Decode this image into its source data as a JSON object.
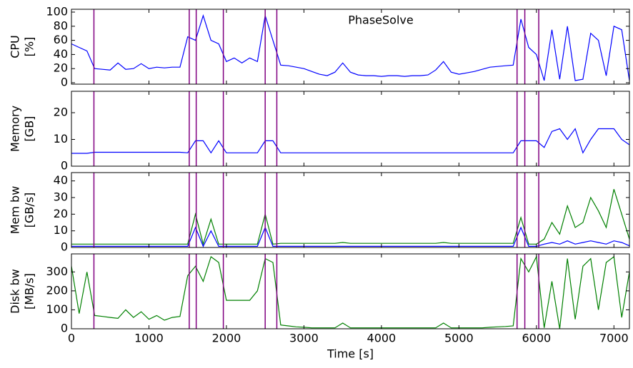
{
  "chart_data": [
    {
      "type": "line",
      "ylabel": [
        "CPU",
        "[%]"
      ],
      "annotation": "PhaseSolve",
      "x": [
        0,
        100,
        200,
        300,
        400,
        500,
        600,
        700,
        800,
        900,
        1000,
        1100,
        1200,
        1300,
        1400,
        1500,
        1600,
        1700,
        1800,
        1900,
        2000,
        2100,
        2200,
        2300,
        2400,
        2500,
        2600,
        2700,
        2800,
        2900,
        3000,
        3100,
        3200,
        3300,
        3400,
        3500,
        3600,
        3700,
        3800,
        3900,
        4000,
        4100,
        4200,
        4300,
        4400,
        4500,
        4600,
        4700,
        4800,
        4900,
        5000,
        5100,
        5200,
        5300,
        5400,
        5500,
        5600,
        5700,
        5800,
        5900,
        6000,
        6100,
        6200,
        6300,
        6400,
        6500,
        6600,
        6700,
        6800,
        6900,
        7000,
        7100,
        7200
      ],
      "series": [
        {
          "color": "#0000ff",
          "values": [
            55,
            50,
            45,
            20,
            19,
            18,
            28,
            19,
            20,
            27,
            20,
            22,
            21,
            22,
            22,
            65,
            60,
            95,
            60,
            55,
            30,
            35,
            28,
            35,
            30,
            95,
            60,
            25,
            24,
            22,
            20,
            16,
            12,
            10,
            15,
            28,
            15,
            11,
            10,
            10,
            9,
            10,
            10,
            9,
            10,
            10,
            11,
            18,
            30,
            15,
            12,
            14,
            16,
            19,
            22,
            23,
            24,
            25,
            90,
            50,
            40,
            3,
            75,
            5,
            80,
            3,
            5,
            70,
            60,
            10,
            80,
            75,
            3
          ]
        }
      ],
      "xlim": [
        0,
        7200
      ],
      "xticks": [
        0,
        1000,
        2000,
        3000,
        4000,
        5000,
        6000,
        7000
      ],
      "ylim": [
        -2,
        104
      ],
      "yticks": [
        0,
        20,
        40,
        60,
        80,
        100
      ],
      "vlines": [
        290,
        1520,
        1610,
        1960,
        2500,
        2650,
        5750,
        5850,
        6030
      ],
      "vline_color": "#800080"
    },
    {
      "type": "line",
      "ylabel": [
        "Memory",
        "[GB]"
      ],
      "x": [
        0,
        100,
        200,
        300,
        400,
        500,
        600,
        700,
        800,
        900,
        1000,
        1100,
        1200,
        1300,
        1400,
        1500,
        1600,
        1700,
        1800,
        1900,
        2000,
        2100,
        2200,
        2300,
        2400,
        2500,
        2600,
        2700,
        2800,
        2900,
        3000,
        3100,
        3200,
        3300,
        3400,
        3500,
        3600,
        3700,
        3800,
        3900,
        4000,
        4100,
        4200,
        4300,
        4400,
        4500,
        4600,
        4700,
        4800,
        4900,
        5000,
        5100,
        5200,
        5300,
        5400,
        5500,
        5600,
        5700,
        5800,
        5900,
        6000,
        6100,
        6200,
        6300,
        6400,
        6500,
        6600,
        6700,
        6800,
        6900,
        7000,
        7100,
        7200
      ],
      "series": [
        {
          "color": "#0000ff",
          "values": [
            4.8,
            4.8,
            4.8,
            5.2,
            5.2,
            5.2,
            5.2,
            5.2,
            5.2,
            5.2,
            5.2,
            5.2,
            5.2,
            5.2,
            5.2,
            5,
            9.5,
            9.5,
            5,
            9.5,
            5,
            5,
            5,
            5,
            5,
            9.5,
            9.5,
            5,
            5,
            5,
            5,
            5,
            5,
            5,
            5,
            5,
            5,
            5,
            5,
            5,
            5,
            5,
            5,
            5,
            5,
            5,
            5,
            5,
            5,
            5,
            5,
            5,
            5,
            5,
            5,
            5,
            5,
            5,
            9.5,
            9.5,
            9.5,
            7,
            13,
            14,
            10,
            14,
            5,
            10,
            14,
            14,
            14,
            10,
            8
          ]
        }
      ],
      "xlim": [
        0,
        7200
      ],
      "xticks": [
        0,
        1000,
        2000,
        3000,
        4000,
        5000,
        6000,
        7000
      ],
      "ylim": [
        0,
        28
      ],
      "yticks": [
        0,
        10,
        20
      ],
      "vlines": [
        290,
        1520,
        1610,
        1960,
        2500,
        2650,
        5750,
        5850,
        6030
      ],
      "vline_color": "#800080"
    },
    {
      "type": "line",
      "ylabel": [
        "Mem bw",
        "[GB/s]"
      ],
      "x": [
        0,
        100,
        200,
        300,
        400,
        500,
        600,
        700,
        800,
        900,
        1000,
        1100,
        1200,
        1300,
        1400,
        1500,
        1600,
        1700,
        1800,
        1900,
        2000,
        2100,
        2200,
        2300,
        2400,
        2500,
        2600,
        2700,
        2800,
        2900,
        3000,
        3100,
        3200,
        3300,
        3400,
        3500,
        3600,
        3700,
        3800,
        3900,
        4000,
        4100,
        4200,
        4300,
        4400,
        4500,
        4600,
        4700,
        4800,
        4900,
        5000,
        5100,
        5200,
        5300,
        5400,
        5500,
        5600,
        5700,
        5800,
        5900,
        6000,
        6100,
        6200,
        6300,
        6400,
        6500,
        6600,
        6700,
        6800,
        6900,
        7000,
        7100,
        7200
      ],
      "series": [
        {
          "color": "#008000",
          "values": [
            2,
            2,
            2,
            2,
            2,
            2,
            2,
            2,
            2,
            2,
            2,
            2,
            2,
            2,
            2,
            2,
            20,
            2,
            17,
            2,
            2,
            2,
            2,
            2,
            2,
            20,
            2,
            2.5,
            2.5,
            2.5,
            2.5,
            2.5,
            2.5,
            2.5,
            2.5,
            3,
            2.5,
            2.5,
            2.5,
            2.5,
            2.5,
            2.5,
            2.5,
            2.5,
            2.5,
            2.5,
            2.5,
            2.5,
            3,
            2.5,
            2.5,
            2.5,
            2.5,
            2.5,
            2.5,
            2.5,
            2.5,
            2.5,
            18,
            2,
            2,
            5,
            15,
            8,
            25,
            12,
            15,
            30,
            22,
            12,
            35,
            20,
            5
          ]
        },
        {
          "color": "#0000ff",
          "values": [
            0.7,
            0.7,
            0.7,
            0.7,
            0.7,
            0.7,
            0.7,
            0.7,
            0.7,
            0.7,
            0.7,
            0.7,
            0.7,
            0.7,
            0.7,
            0.7,
            12,
            0.7,
            10,
            0.7,
            0.7,
            0.7,
            0.7,
            0.7,
            0.7,
            12,
            0.7,
            0.7,
            0.7,
            0.7,
            0.7,
            0.7,
            0.7,
            0.7,
            0.7,
            0.7,
            0.7,
            0.7,
            0.7,
            0.7,
            0.7,
            0.7,
            0.7,
            0.7,
            0.7,
            0.7,
            0.7,
            0.7,
            0.7,
            0.7,
            0.7,
            0.7,
            0.7,
            0.7,
            0.7,
            0.7,
            0.7,
            0.7,
            12,
            0.7,
            0.7,
            2,
            3,
            2,
            4,
            2,
            3,
            4,
            3,
            2,
            4,
            3,
            1
          ]
        }
      ],
      "xlim": [
        0,
        7200
      ],
      "xticks": [
        0,
        1000,
        2000,
        3000,
        4000,
        5000,
        6000,
        7000
      ],
      "ylim": [
        0,
        45
      ],
      "yticks": [
        0,
        10,
        20,
        30,
        40
      ],
      "vlines": [
        290,
        1520,
        1610,
        1960,
        2500,
        2650,
        5750,
        5850,
        6030
      ],
      "vline_color": "#800080"
    },
    {
      "type": "line",
      "ylabel": [
        "Disk bw",
        "[MB/s]"
      ],
      "xlabel": "Time [s]",
      "x": [
        0,
        100,
        200,
        300,
        400,
        500,
        600,
        700,
        800,
        900,
        1000,
        1100,
        1200,
        1300,
        1400,
        1500,
        1600,
        1700,
        1800,
        1900,
        2000,
        2100,
        2200,
        2300,
        2400,
        2500,
        2600,
        2700,
        2800,
        2900,
        3000,
        3100,
        3200,
        3300,
        3400,
        3500,
        3600,
        3700,
        3800,
        3900,
        4000,
        4100,
        4200,
        4300,
        4400,
        4500,
        4600,
        4700,
        4800,
        4900,
        5000,
        5100,
        5200,
        5300,
        5400,
        5500,
        5600,
        5700,
        5800,
        5900,
        6000,
        6100,
        6200,
        6300,
        6400,
        6500,
        6600,
        6700,
        6800,
        6900,
        7000,
        7100,
        7200
      ],
      "series": [
        {
          "color": "#008000",
          "values": [
            330,
            80,
            300,
            70,
            65,
            60,
            55,
            100,
            60,
            90,
            50,
            70,
            45,
            60,
            65,
            280,
            330,
            250,
            380,
            350,
            150,
            150,
            150,
            150,
            200,
            370,
            350,
            20,
            15,
            10,
            8,
            5,
            5,
            5,
            5,
            30,
            5,
            5,
            5,
            5,
            5,
            5,
            5,
            5,
            5,
            5,
            5,
            5,
            30,
            5,
            5,
            5,
            5,
            5,
            8,
            10,
            12,
            15,
            370,
            300,
            380,
            5,
            250,
            0,
            370,
            50,
            330,
            370,
            100,
            350,
            380,
            60,
            300
          ]
        }
      ],
      "xlim": [
        0,
        7200
      ],
      "xticks": [
        0,
        1000,
        2000,
        3000,
        4000,
        5000,
        6000,
        7000
      ],
      "ylim": [
        0,
        395
      ],
      "yticks": [
        0,
        100,
        200,
        300
      ],
      "vlines": [
        290,
        1520,
        1610,
        1960,
        2500,
        2650,
        5750,
        5850,
        6030
      ],
      "vline_color": "#800080"
    }
  ]
}
